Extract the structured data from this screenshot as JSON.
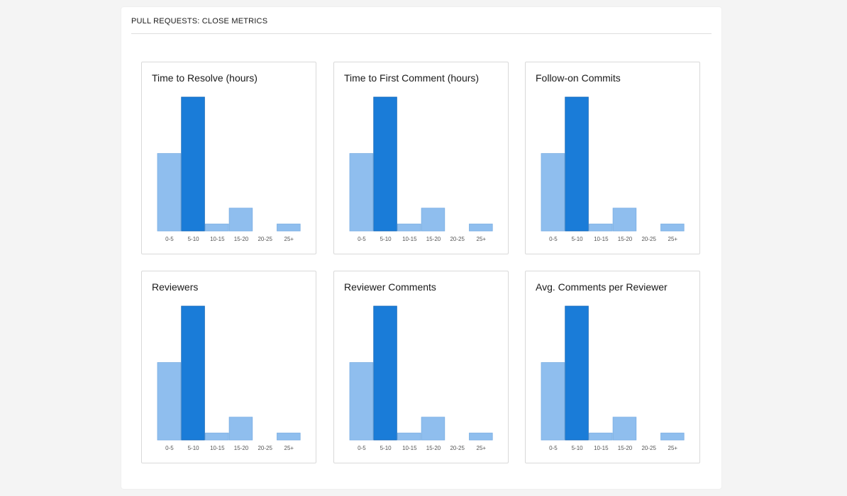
{
  "header": {
    "title": "PULL REQUESTS: CLOSE METRICS"
  },
  "colors": {
    "bar": "#8fbeee",
    "bar_highlight": "#1a7cd8",
    "bar_border": "#7aaee3"
  },
  "chart_data": [
    {
      "type": "bar",
      "title": "Time to Resolve (hours)",
      "categories": [
        "0-5",
        "5-10",
        "10-15",
        "15-20",
        "20-25",
        "25+"
      ],
      "values": [
        44,
        76,
        4,
        13,
        0,
        4
      ],
      "highlight_index": 1,
      "ylim": [
        0,
        76
      ]
    },
    {
      "type": "bar",
      "title": "Time to First Comment (hours)",
      "categories": [
        "0-5",
        "5-10",
        "10-15",
        "15-20",
        "20-25",
        "25+"
      ],
      "values": [
        44,
        76,
        4,
        13,
        0,
        4
      ],
      "highlight_index": 1,
      "ylim": [
        0,
        76
      ]
    },
    {
      "type": "bar",
      "title": "Follow-on Commits",
      "categories": [
        "0-5",
        "5-10",
        "10-15",
        "15-20",
        "20-25",
        "25+"
      ],
      "values": [
        44,
        76,
        4,
        13,
        0,
        4
      ],
      "highlight_index": 1,
      "ylim": [
        0,
        76
      ]
    },
    {
      "type": "bar",
      "title": "Reviewers",
      "categories": [
        "0-5",
        "5-10",
        "10-15",
        "15-20",
        "20-25",
        "25+"
      ],
      "values": [
        44,
        76,
        4,
        13,
        0,
        4
      ],
      "highlight_index": 1,
      "ylim": [
        0,
        76
      ]
    },
    {
      "type": "bar",
      "title": "Reviewer Comments",
      "categories": [
        "0-5",
        "5-10",
        "10-15",
        "15-20",
        "20-25",
        "25+"
      ],
      "values": [
        44,
        76,
        4,
        13,
        0,
        4
      ],
      "highlight_index": 1,
      "ylim": [
        0,
        76
      ]
    },
    {
      "type": "bar",
      "title": "Avg. Comments per Reviewer",
      "categories": [
        "0-5",
        "5-10",
        "10-15",
        "15-20",
        "20-25",
        "25+"
      ],
      "values": [
        44,
        76,
        4,
        13,
        0,
        4
      ],
      "highlight_index": 1,
      "ylim": [
        0,
        76
      ]
    }
  ]
}
